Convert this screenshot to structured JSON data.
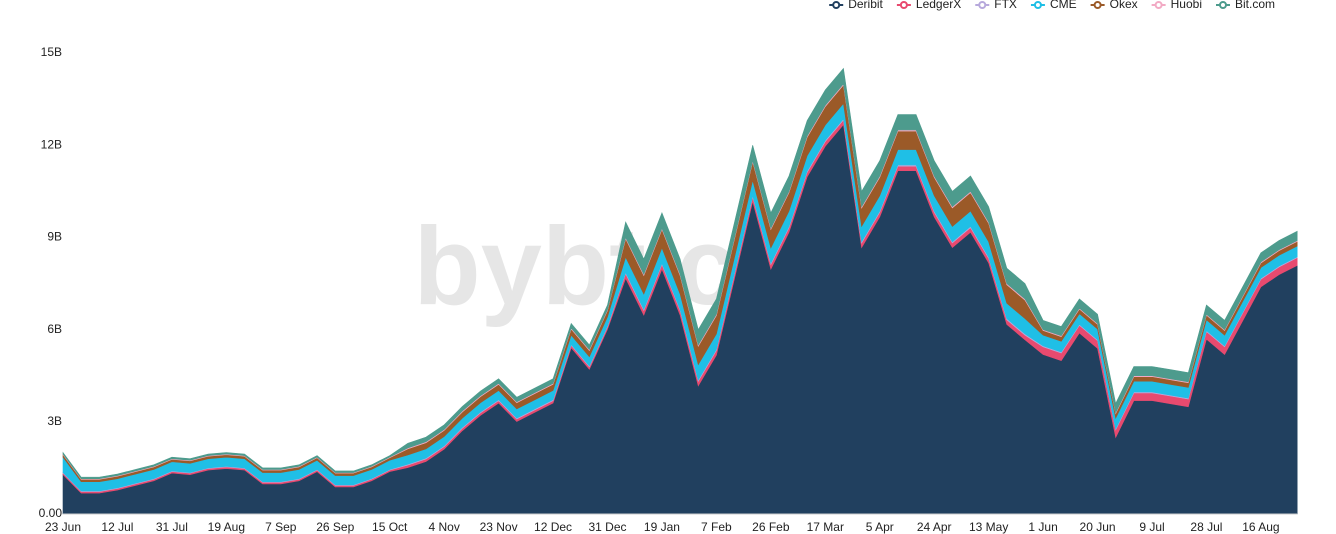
{
  "chart_data": {
    "type": "stacked-area",
    "watermark": "bybt.com",
    "categories": [
      "23 Jun",
      null,
      null,
      "12 Jul",
      null,
      null,
      "31 Jul",
      null,
      null,
      "19 Aug",
      null,
      null,
      "7 Sep",
      null,
      null,
      "26 Sep",
      null,
      null,
      "15 Oct",
      null,
      null,
      "4 Nov",
      null,
      null,
      "23 Nov",
      null,
      null,
      "12 Dec",
      null,
      null,
      "31 Dec",
      null,
      null,
      "19 Jan",
      null,
      null,
      "7 Feb",
      null,
      null,
      "26 Feb",
      null,
      null,
      "17 Mar",
      null,
      null,
      "5 Apr",
      null,
      null,
      "24 Apr",
      null,
      null,
      "13 May",
      null,
      null,
      "1 Jun",
      null,
      null,
      "20 Jun",
      null,
      null,
      "9 Jul",
      null,
      null,
      "28 Jul",
      null,
      null,
      "16 Aug",
      null,
      null
    ],
    "series": [
      {
        "name": "Deribit",
        "color": "#21405f",
        "values": [
          1.28,
          0.68,
          0.68,
          0.78,
          0.93,
          1.08,
          1.33,
          1.28,
          1.43,
          1.48,
          1.43,
          0.98,
          0.98,
          1.08,
          1.38,
          0.88,
          0.88,
          1.08,
          1.38,
          1.51,
          1.71,
          2.11,
          2.71,
          3.21,
          3.61,
          3.01,
          3.31,
          3.61,
          5.41,
          4.71,
          6.01,
          7.67,
          6.47,
          7.97,
          6.47,
          4.17,
          5.17,
          7.67,
          10.17,
          7.97,
          9.17,
          10.97,
          11.97,
          12.67,
          8.67,
          9.67,
          11.17,
          11.17,
          9.67,
          8.67,
          9.17,
          8.17,
          6.17,
          5.67,
          5.19,
          4.99,
          5.89,
          5.39,
          2.49,
          3.69,
          3.69,
          3.59,
          3.49,
          5.69,
          5.19,
          6.29,
          7.39,
          7.79,
          8.09
        ]
      },
      {
        "name": "LedgerX",
        "color": "#e84a6f",
        "values": [
          0.05,
          0.05,
          0.05,
          0.05,
          0.05,
          0.05,
          0.05,
          0.05,
          0.05,
          0.05,
          0.05,
          0.05,
          0.05,
          0.05,
          0.05,
          0.05,
          0.05,
          0.05,
          0.05,
          0.08,
          0.08,
          0.08,
          0.08,
          0.08,
          0.08,
          0.08,
          0.08,
          0.08,
          0.08,
          0.08,
          0.08,
          0.15,
          0.15,
          0.15,
          0.15,
          0.15,
          0.15,
          0.15,
          0.15,
          0.15,
          0.15,
          0.15,
          0.15,
          0.15,
          0.15,
          0.15,
          0.15,
          0.15,
          0.15,
          0.15,
          0.15,
          0.15,
          0.15,
          0.15,
          0.25,
          0.25,
          0.25,
          0.25,
          0.25,
          0.25,
          0.25,
          0.25,
          0.25,
          0.25,
          0.25,
          0.25,
          0.25,
          0.25,
          0.25
        ]
      },
      {
        "name": "FTX",
        "color": "#b7a9dc",
        "values": [
          0.02,
          0.02,
          0.02,
          0.02,
          0.02,
          0.02,
          0.02,
          0.02,
          0.02,
          0.02,
          0.02,
          0.02,
          0.02,
          0.02,
          0.02,
          0.02,
          0.02,
          0.02,
          0.02,
          0.03,
          0.03,
          0.03,
          0.03,
          0.03,
          0.03,
          0.03,
          0.03,
          0.03,
          0.03,
          0.03,
          0.03,
          0.04,
          0.04,
          0.04,
          0.04,
          0.04,
          0.04,
          0.04,
          0.04,
          0.04,
          0.04,
          0.04,
          0.04,
          0.04,
          0.04,
          0.04,
          0.04,
          0.04,
          0.04,
          0.04,
          0.04,
          0.04,
          0.04,
          0.04,
          0.03,
          0.03,
          0.03,
          0.03,
          0.03,
          0.03,
          0.03,
          0.03,
          0.03,
          0.03,
          0.03,
          0.03,
          0.03,
          0.03,
          0.03
        ]
      },
      {
        "name": "CME",
        "color": "#1fbfe6",
        "values": [
          0.5,
          0.3,
          0.3,
          0.3,
          0.3,
          0.3,
          0.3,
          0.3,
          0.3,
          0.3,
          0.3,
          0.3,
          0.3,
          0.3,
          0.3,
          0.3,
          0.3,
          0.3,
          0.3,
          0.3,
          0.3,
          0.3,
          0.3,
          0.3,
          0.3,
          0.3,
          0.3,
          0.3,
          0.3,
          0.3,
          0.3,
          0.5,
          0.5,
          0.5,
          0.5,
          0.5,
          0.5,
          0.5,
          0.5,
          0.5,
          0.5,
          0.5,
          0.5,
          0.5,
          0.5,
          0.5,
          0.5,
          0.5,
          0.5,
          0.5,
          0.5,
          0.5,
          0.5,
          0.5,
          0.35,
          0.35,
          0.35,
          0.35,
          0.35,
          0.35,
          0.35,
          0.35,
          0.35,
          0.35,
          0.35,
          0.35,
          0.35,
          0.35,
          0.35
        ]
      },
      {
        "name": "Okex",
        "color": "#9b5a28",
        "values": [
          0.08,
          0.08,
          0.08,
          0.08,
          0.08,
          0.08,
          0.08,
          0.08,
          0.08,
          0.08,
          0.08,
          0.08,
          0.08,
          0.08,
          0.08,
          0.08,
          0.08,
          0.08,
          0.08,
          0.2,
          0.2,
          0.2,
          0.2,
          0.2,
          0.2,
          0.2,
          0.2,
          0.2,
          0.2,
          0.2,
          0.2,
          0.6,
          0.6,
          0.6,
          0.6,
          0.6,
          0.6,
          0.6,
          0.6,
          0.6,
          0.6,
          0.6,
          0.6,
          0.6,
          0.6,
          0.6,
          0.6,
          0.6,
          0.6,
          0.6,
          0.6,
          0.6,
          0.6,
          0.6,
          0.15,
          0.15,
          0.15,
          0.15,
          0.15,
          0.15,
          0.15,
          0.15,
          0.15,
          0.15,
          0.15,
          0.15,
          0.15,
          0.15,
          0.15
        ]
      },
      {
        "name": "Huobi",
        "color": "#f2aac4",
        "values": [
          0.02,
          0.02,
          0.02,
          0.02,
          0.02,
          0.02,
          0.02,
          0.02,
          0.02,
          0.02,
          0.02,
          0.02,
          0.02,
          0.02,
          0.02,
          0.02,
          0.02,
          0.02,
          0.02,
          0.03,
          0.03,
          0.03,
          0.03,
          0.03,
          0.03,
          0.03,
          0.03,
          0.03,
          0.03,
          0.03,
          0.03,
          0.04,
          0.04,
          0.04,
          0.04,
          0.04,
          0.04,
          0.04,
          0.04,
          0.04,
          0.04,
          0.04,
          0.04,
          0.04,
          0.04,
          0.04,
          0.04,
          0.04,
          0.04,
          0.04,
          0.04,
          0.04,
          0.04,
          0.04,
          0.03,
          0.03,
          0.03,
          0.03,
          0.03,
          0.03,
          0.03,
          0.03,
          0.03,
          0.03,
          0.03,
          0.03,
          0.03,
          0.03,
          0.03
        ]
      },
      {
        "name": "Bit.com",
        "color": "#4d9b8d",
        "values": [
          0.05,
          0.05,
          0.05,
          0.05,
          0.05,
          0.05,
          0.05,
          0.05,
          0.05,
          0.05,
          0.05,
          0.05,
          0.05,
          0.05,
          0.05,
          0.05,
          0.05,
          0.05,
          0.05,
          0.15,
          0.15,
          0.15,
          0.15,
          0.15,
          0.15,
          0.15,
          0.15,
          0.15,
          0.15,
          0.15,
          0.15,
          0.5,
          0.5,
          0.5,
          0.5,
          0.5,
          0.5,
          0.5,
          0.5,
          0.5,
          0.5,
          0.5,
          0.5,
          0.5,
          0.5,
          0.5,
          0.5,
          0.5,
          0.5,
          0.5,
          0.5,
          0.5,
          0.5,
          0.5,
          0.3,
          0.3,
          0.3,
          0.3,
          0.3,
          0.3,
          0.3,
          0.3,
          0.3,
          0.3,
          0.3,
          0.3,
          0.3,
          0.3,
          0.3
        ]
      }
    ],
    "ylim": [
      0,
      15.5
    ],
    "yticks": [
      {
        "value": 0,
        "label": "0.00"
      },
      {
        "value": 3,
        "label": "3B"
      },
      {
        "value": 6,
        "label": "6B"
      },
      {
        "value": 9,
        "label": "9B"
      },
      {
        "value": 12,
        "label": "12B"
      },
      {
        "value": 15,
        "label": "15B"
      }
    ],
    "grid": false,
    "legend": "top-right"
  }
}
